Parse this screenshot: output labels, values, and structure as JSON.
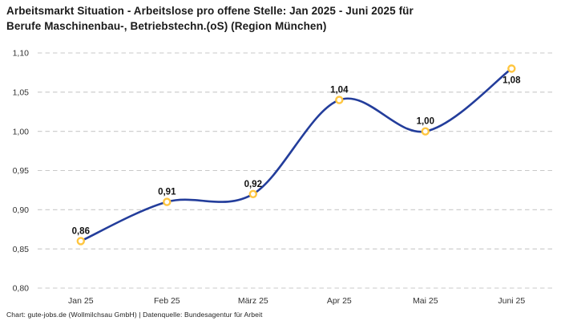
{
  "title": {
    "line1": "Arbeitsmarkt Situation - Arbeitslose pro offene Stelle: Jan 2025 - Juni 2025 für",
    "line2": "Berufe Maschinenbau-, Betriebstechn.(oS) (Region München)"
  },
  "footer": {
    "text": "Chart: gute-jobs.de (Wollmilchsau GmbH) | Datenquelle: Bundesagentur für Arbeit"
  },
  "chart_data": {
    "type": "line",
    "title": "Arbeitsmarkt Situation - Arbeitslose pro offene Stelle: Jan 2025 - Juni 2025 für Berufe Maschinenbau-, Betriebstechn.(oS) (Region München)",
    "categories": [
      "Jan 25",
      "Feb 25",
      "März 25",
      "Apr 25",
      "Mai 25",
      "Juni 25"
    ],
    "values": [
      0.86,
      0.91,
      0.92,
      1.04,
      1.0,
      1.08
    ],
    "value_labels": [
      "0,86",
      "0,91",
      "0,92",
      "1,04",
      "1,00",
      "1,08"
    ],
    "value_label_positions": [
      "above",
      "above",
      "above",
      "above",
      "above",
      "below"
    ],
    "ylim": [
      0.8,
      1.1
    ],
    "ytick_step": 0.05,
    "ytick_labels": [
      "0,80",
      "0,85",
      "0,90",
      "0,95",
      "1,00",
      "1,05",
      "1,10"
    ],
    "xlabel": "",
    "ylabel": "",
    "legend": "none",
    "grid": "horizontal-dashed",
    "curve": "smooth",
    "colors": {
      "line": "#233D9B",
      "marker_stroke": "#FFC640",
      "marker_fill": "#FFFFFF",
      "grid": "#C9C9C9",
      "tick_text": "#333333",
      "value_label_text": "#111111",
      "title_text": "#1A1A1A",
      "footer_text": "#222222",
      "background": "#FFFFFF"
    }
  }
}
